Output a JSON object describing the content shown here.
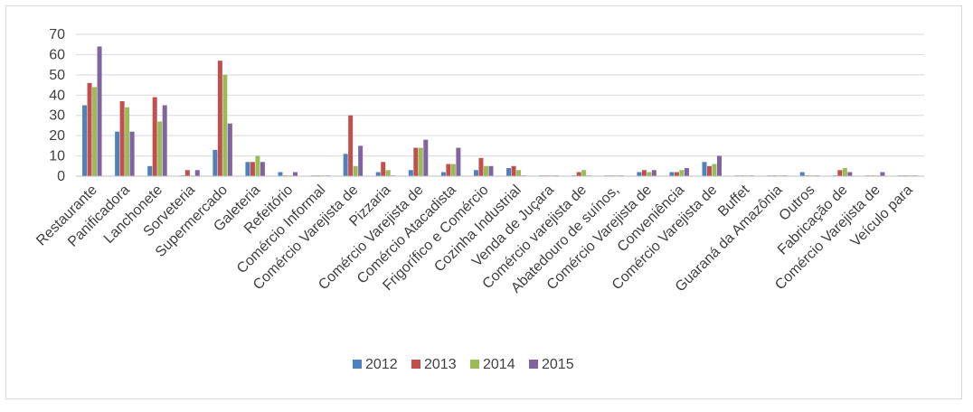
{
  "chart_data": {
    "type": "bar",
    "title": "",
    "xlabel": "",
    "ylabel": "",
    "ylim": [
      0,
      70
    ],
    "yticks": [
      0,
      10,
      20,
      30,
      40,
      50,
      60,
      70
    ],
    "grid": true,
    "legend_position": "bottom",
    "categories": [
      "Restaurante",
      "Panificadora",
      "Lanchonete",
      "Sorveteria",
      "Supermercado",
      "Galeteria",
      "Refeitório",
      "Comércio Informal",
      "Comércio Varejista de",
      "Pizzaria",
      "Comércio Varejista de",
      "Comércio Atacadista",
      "Frigorífico e Comércio",
      "Cozinha Industrial",
      "Venda de Juçara",
      "Comércio varejista de",
      "Abatedouro de suínos,",
      "Comércio Varejista de",
      "Conveniência",
      "Comércio Varejista de",
      "Buffet",
      "Guaraná da Amazônia",
      "Outros",
      "Fabricação de",
      "Comércio Varejista de",
      "Veículo para"
    ],
    "series": [
      {
        "name": "2012",
        "color": "#4f81bd",
        "values": [
          35,
          22,
          5,
          0,
          13,
          7,
          2,
          0,
          11,
          2,
          3,
          2,
          3,
          4,
          0,
          0,
          0,
          2,
          2,
          7,
          0,
          0,
          2,
          0,
          0,
          0
        ]
      },
      {
        "name": "2013",
        "color": "#c0504d",
        "values": [
          46,
          37,
          39,
          3,
          57,
          7,
          0,
          0,
          30,
          7,
          14,
          6,
          9,
          5,
          0,
          2,
          0,
          3,
          2,
          5,
          0,
          0,
          0,
          3,
          0,
          0
        ]
      },
      {
        "name": "2014",
        "color": "#9bbb59",
        "values": [
          44,
          34,
          27,
          0,
          50,
          10,
          0,
          0,
          5,
          3,
          14,
          6,
          5,
          3,
          0,
          3,
          0,
          2,
          3,
          6,
          0,
          0,
          0,
          4,
          0,
          0
        ]
      },
      {
        "name": "2015",
        "color": "#8064a2",
        "values": [
          64,
          22,
          35,
          3,
          26,
          7,
          2,
          0,
          15,
          0,
          18,
          14,
          5,
          0,
          0,
          0,
          0,
          3,
          4,
          10,
          0,
          0,
          0,
          2,
          2,
          0
        ]
      }
    ]
  }
}
